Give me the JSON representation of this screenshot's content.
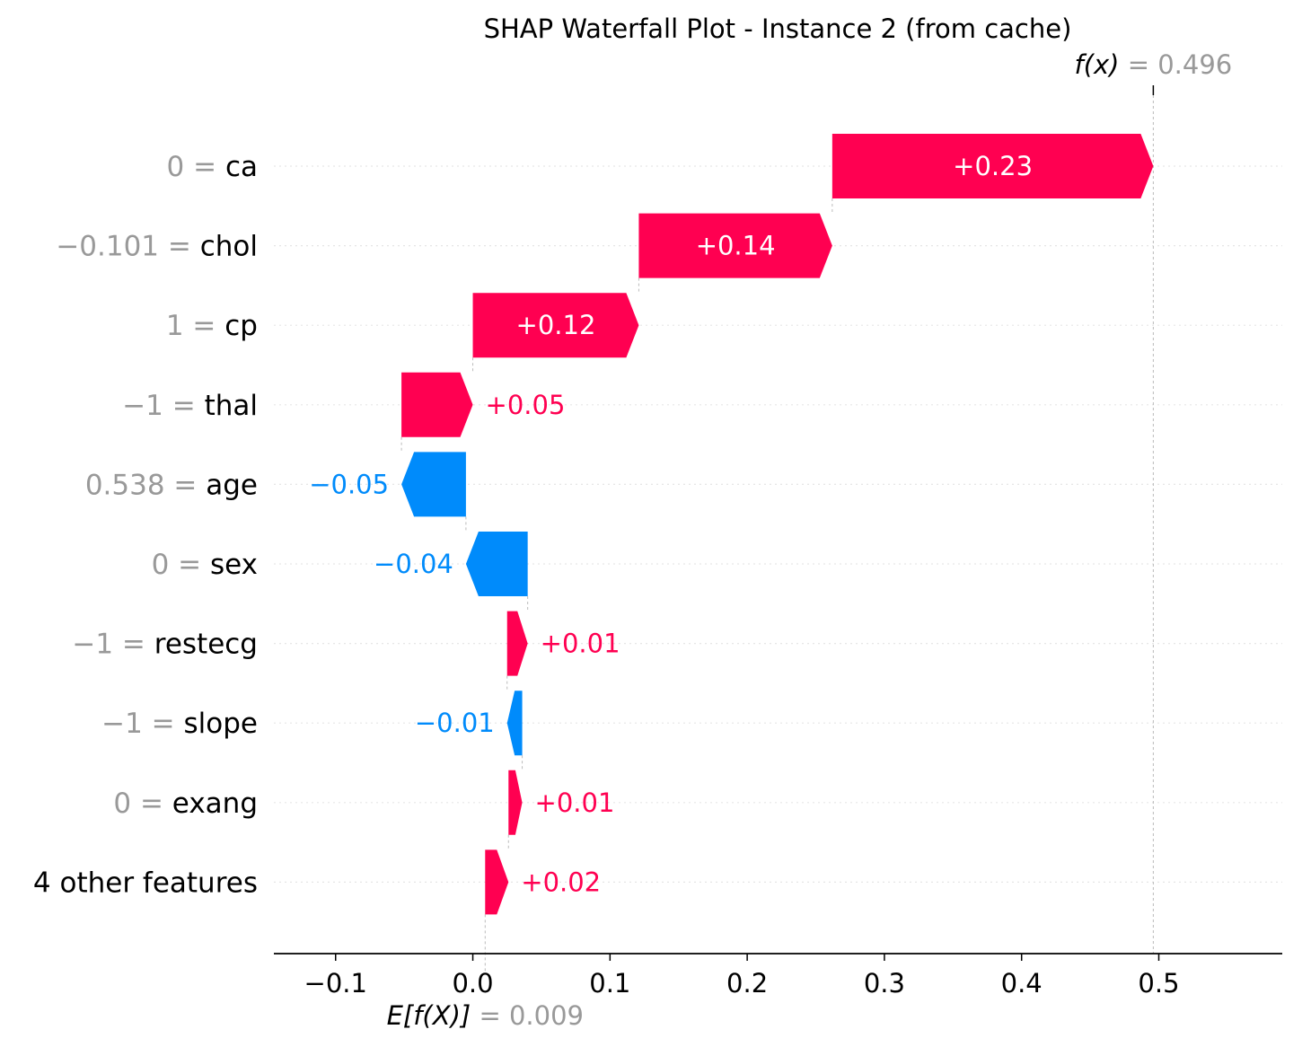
{
  "chart_data": {
    "type": "waterfall",
    "title": "SHAP Waterfall Plot - Instance 2 (from cache)",
    "base_value": 0.009,
    "base_value_label": "E[f(X)]",
    "base_value_text": "= 0.009",
    "output_value": 0.496,
    "output_value_label": "f(x)",
    "output_value_text": "= 0.496",
    "xlim": [
      -0.145,
      0.59
    ],
    "x_ticks": [
      -0.1,
      0.0,
      0.1,
      0.2,
      0.3,
      0.4,
      0.5
    ],
    "x_tick_labels": [
      "−0.1",
      "0.0",
      "0.1",
      "0.2",
      "0.3",
      "0.4",
      "0.5"
    ],
    "features": [
      {
        "value": "0",
        "name": "ca",
        "shap": 0.23,
        "label": "+0.23",
        "start": 0.262,
        "end": 0.496
      },
      {
        "value": "−0.101",
        "name": "chol",
        "shap": 0.14,
        "label": "+0.14",
        "start": 0.121,
        "end": 0.262
      },
      {
        "value": "1",
        "name": "cp",
        "shap": 0.12,
        "label": "+0.12",
        "start": 0.0,
        "end": 0.121
      },
      {
        "value": "−1",
        "name": "thal",
        "shap": 0.05,
        "label": "+0.05",
        "start": -0.052,
        "end": 0.0
      },
      {
        "value": "0.538",
        "name": "age",
        "shap": -0.05,
        "label": "−0.05",
        "start": -0.005,
        "end": -0.052
      },
      {
        "value": "0",
        "name": "sex",
        "shap": -0.04,
        "label": "−0.04",
        "start": 0.04,
        "end": -0.005
      },
      {
        "value": "−1",
        "name": "restecg",
        "shap": 0.01,
        "label": "+0.01",
        "start": 0.025,
        "end": 0.04
      },
      {
        "value": "−1",
        "name": "slope",
        "shap": -0.01,
        "label": "−0.01",
        "start": 0.036,
        "end": 0.025
      },
      {
        "value": "0",
        "name": "exang",
        "shap": 0.01,
        "label": "+0.01",
        "start": 0.026,
        "end": 0.036
      },
      {
        "value": "",
        "name": "4 other features",
        "shap": 0.02,
        "label": "+0.02",
        "start": 0.009,
        "end": 0.026
      }
    ],
    "colors": {
      "positive": "#ff0051",
      "negative": "#008bfb",
      "value_text": "#999999",
      "name_text": "#000000",
      "grid": "#e6e6e6",
      "guide": "#bbbbbb"
    }
  }
}
